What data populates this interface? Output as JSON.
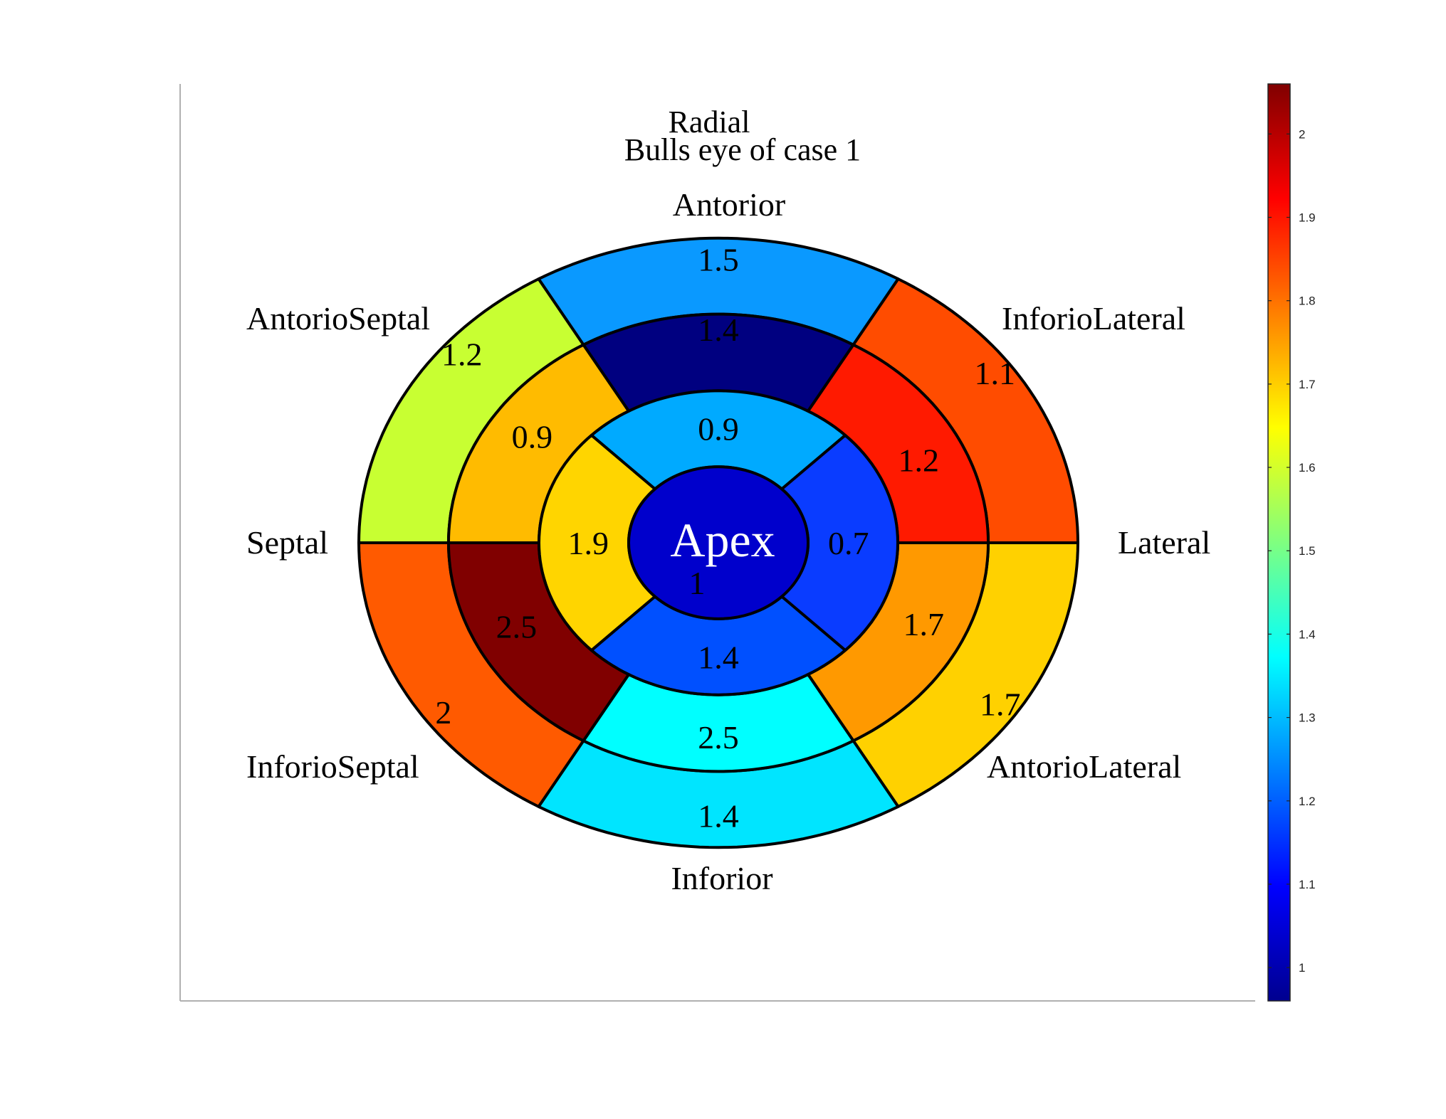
{
  "chart_data": {
    "type": "bullseye",
    "title_lines": [
      "Radial",
      "Bulls eye of case 1"
    ],
    "direction_labels": {
      "top": "Antorior",
      "top_left": "AntorioSeptal",
      "top_right": "InforioLateral",
      "left": "Septal",
      "right": "Lateral",
      "bottom_left": "InforioSeptal",
      "bottom_right": "AntorioLateral",
      "bottom": "Inforior"
    },
    "center_label": "Apex",
    "rings": [
      {
        "name": "basal",
        "segments": [
          {
            "sector": "top",
            "value": "1.5",
            "color": "#0A99FF"
          },
          {
            "sector": "top_right",
            "value": "1.1",
            "color": "#FF4C00"
          },
          {
            "sector": "bottom_right",
            "value": "1.7",
            "color": "#FFD100"
          },
          {
            "sector": "bottom",
            "value": "1.4",
            "color": "#00E5FF"
          },
          {
            "sector": "bottom_left",
            "value": "2",
            "color": "#FF5A00"
          },
          {
            "sector": "top_left",
            "value": "1.2",
            "color": "#C8FF32"
          }
        ]
      },
      {
        "name": "mid",
        "segments": [
          {
            "sector": "top",
            "value": "1.4",
            "color": "#000080"
          },
          {
            "sector": "top_right",
            "value": "1.2",
            "color": "#FF1A00"
          },
          {
            "sector": "bottom_right",
            "value": "1.7",
            "color": "#FF9900"
          },
          {
            "sector": "bottom",
            "value": "2.5",
            "color": "#00FFFF"
          },
          {
            "sector": "bottom_left",
            "value": "2.5",
            "color": "#800000"
          },
          {
            "sector": "top_left",
            "value": "0.9",
            "color": "#FFBB00"
          }
        ]
      },
      {
        "name": "apical",
        "segments": [
          {
            "sector": "top",
            "value": "0.9",
            "color": "#00AAFF"
          },
          {
            "sector": "right",
            "value": "0.7",
            "color": "#0A3CFF"
          },
          {
            "sector": "bottom",
            "value": "1.4",
            "color": "#0050FF"
          },
          {
            "sector": "left",
            "value": "1.9",
            "color": "#FFD500"
          }
        ]
      },
      {
        "name": "apex",
        "segments": [
          {
            "sector": "center",
            "value": "1",
            "color": "#0000CC"
          }
        ]
      }
    ],
    "colorbar": {
      "colormap": "jet",
      "range": [
        0.96,
        2.06
      ],
      "ticks": [
        "1",
        "1.1",
        "1.2",
        "1.3",
        "1.4",
        "1.5",
        "1.6",
        "1.7",
        "1.8",
        "1.9",
        "2"
      ]
    }
  }
}
